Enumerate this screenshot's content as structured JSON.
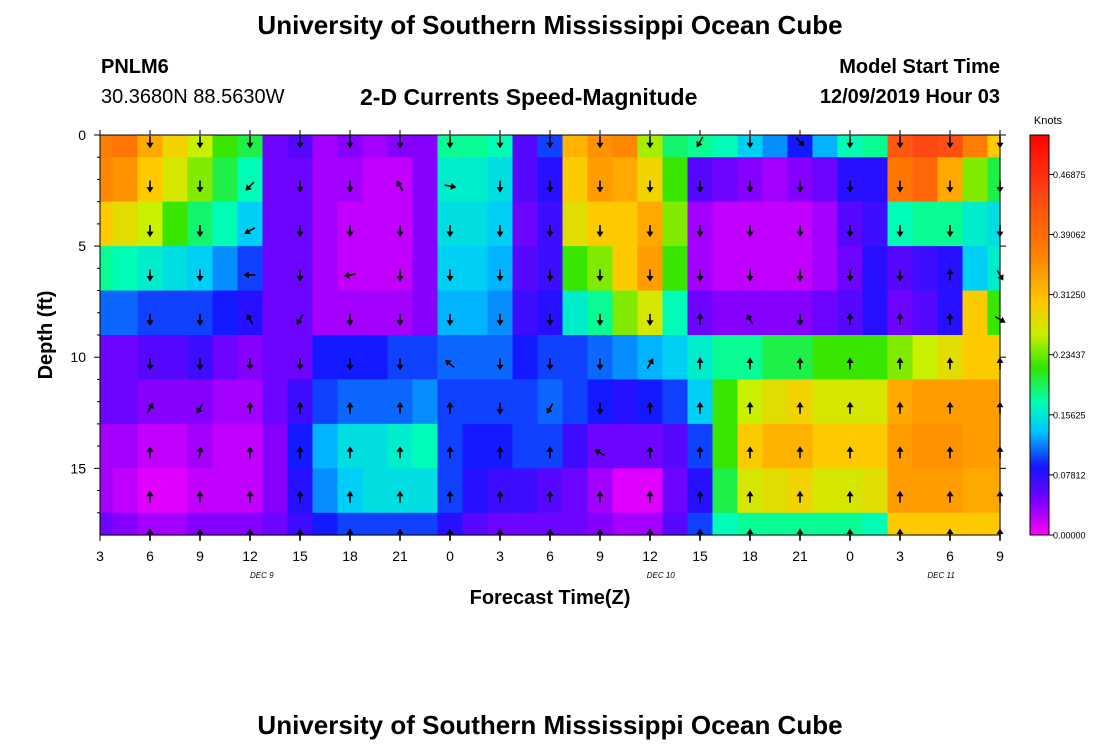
{
  "header": {
    "title": "University of Southern Mississippi Ocean Cube",
    "station": "PNLM6",
    "coords": "30.3680N 88.5630W",
    "subtitle": "2-D Currents Speed-Magnitude",
    "model_start_label": "Model Start Time",
    "model_start_value": "12/09/2019 Hour 03"
  },
  "footer": {
    "title": "University of Southern Mississippi Ocean Cube"
  },
  "chart_data": {
    "type": "heatmap",
    "title": "2-D Currents Speed-Magnitude",
    "xlabel": "Forecast Time(Z)",
    "ylabel": "Depth (ft)",
    "x_hours": [
      0,
      3,
      6,
      9,
      12,
      15,
      18,
      21,
      24,
      27,
      30,
      33,
      36,
      39,
      42,
      45,
      48,
      51,
      54
    ],
    "x_tick_labels": [
      "3",
      "6",
      "9",
      "12",
      "15",
      "18",
      "21",
      "0",
      "3",
      "6",
      "9",
      "12",
      "15",
      "18",
      "21",
      "0",
      "3",
      "6",
      "9"
    ],
    "date_labels": [
      {
        "hour": 15,
        "label": "DEC 9"
      },
      {
        "hour": 52,
        "label": "DEC 10"
      },
      {
        "hour": 78,
        "label": "DEC 11"
      }
    ],
    "xlim": [
      0,
      54
    ],
    "ylim": [
      0,
      18
    ],
    "y_ticks": [
      0,
      5,
      10,
      15
    ],
    "y_tick_labels": [
      "0",
      "5",
      "10",
      "15"
    ],
    "colorbar": {
      "unit": "Knots",
      "range": [
        0,
        0.52
      ],
      "ticks": [
        0.46875,
        0.39062,
        0.3125,
        0.23437,
        0.15625,
        0.07812,
        0.0
      ],
      "tick_labels": [
        "0.46875",
        "0.39062",
        "0.31250",
        "0.23437",
        "0.15625",
        "0.07812",
        "0.00000"
      ]
    },
    "grid": false,
    "speed_grid": {
      "time_hours": [
        0,
        1.5,
        3,
        4.5,
        6,
        7.5,
        9,
        10.5,
        12,
        13.5,
        15,
        16.5,
        18,
        19.5,
        21,
        22.5,
        24,
        25.5,
        27,
        28.5,
        30,
        31.5,
        33,
        34.5,
        36,
        37.5,
        39,
        40.5,
        42,
        43.5,
        45,
        46.5,
        48,
        49.5,
        51,
        52.5,
        54
      ],
      "depth_ft": [
        0,
        2,
        4,
        6,
        8,
        10,
        12,
        14,
        16,
        18
      ],
      "values": [
        [
          0.37,
          0.38,
          0.33,
          0.29,
          0.26,
          0.22,
          0.2,
          0.05,
          0.06,
          0.03,
          0.04,
          0.03,
          0.04,
          0.04,
          0.18,
          0.18,
          0.17,
          0.06,
          0.1,
          0.32,
          0.35,
          0.36,
          0.25,
          0.19,
          0.18,
          0.17,
          0.14,
          0.12,
          0.09,
          0.13,
          0.17,
          0.18,
          0.42,
          0.44,
          0.43,
          0.37,
          0.3
        ],
        [
          0.36,
          0.35,
          0.3,
          0.27,
          0.24,
          0.2,
          0.17,
          0.05,
          0.05,
          0.03,
          0.03,
          0.02,
          0.02,
          0.04,
          0.16,
          0.16,
          0.15,
          0.06,
          0.08,
          0.3,
          0.34,
          0.33,
          0.29,
          0.22,
          0.06,
          0.05,
          0.04,
          0.03,
          0.04,
          0.05,
          0.08,
          0.08,
          0.38,
          0.4,
          0.33,
          0.24,
          0.2
        ],
        [
          0.3,
          0.28,
          0.26,
          0.22,
          0.19,
          0.17,
          0.14,
          0.05,
          0.05,
          0.03,
          0.02,
          0.02,
          0.02,
          0.04,
          0.15,
          0.15,
          0.14,
          0.05,
          0.07,
          0.28,
          0.3,
          0.3,
          0.33,
          0.24,
          0.03,
          0.02,
          0.02,
          0.02,
          0.02,
          0.03,
          0.06,
          0.07,
          0.17,
          0.18,
          0.18,
          0.16,
          0.15
        ],
        [
          0.18,
          0.17,
          0.16,
          0.15,
          0.14,
          0.12,
          0.1,
          0.05,
          0.05,
          0.03,
          0.02,
          0.02,
          0.02,
          0.04,
          0.14,
          0.14,
          0.13,
          0.06,
          0.07,
          0.22,
          0.24,
          0.3,
          0.34,
          0.22,
          0.03,
          0.02,
          0.02,
          0.02,
          0.02,
          0.03,
          0.05,
          0.08,
          0.06,
          0.07,
          0.08,
          0.14,
          0.16
        ],
        [
          0.11,
          0.11,
          0.1,
          0.1,
          0.1,
          0.09,
          0.08,
          0.05,
          0.05,
          0.03,
          0.03,
          0.03,
          0.03,
          0.04,
          0.13,
          0.13,
          0.12,
          0.07,
          0.08,
          0.16,
          0.18,
          0.24,
          0.27,
          0.17,
          0.05,
          0.04,
          0.04,
          0.04,
          0.04,
          0.05,
          0.06,
          0.08,
          0.05,
          0.06,
          0.08,
          0.3,
          0.22
        ],
        [
          0.05,
          0.05,
          0.06,
          0.06,
          0.07,
          0.05,
          0.04,
          0.05,
          0.05,
          0.09,
          0.09,
          0.09,
          0.1,
          0.1,
          0.11,
          0.11,
          0.11,
          0.09,
          0.1,
          0.1,
          0.11,
          0.12,
          0.13,
          0.14,
          0.16,
          0.18,
          0.18,
          0.2,
          0.2,
          0.22,
          0.22,
          0.22,
          0.24,
          0.26,
          0.28,
          0.3,
          0.3
        ],
        [
          0.05,
          0.05,
          0.04,
          0.04,
          0.04,
          0.03,
          0.03,
          0.05,
          0.07,
          0.1,
          0.11,
          0.11,
          0.11,
          0.12,
          0.1,
          0.1,
          0.1,
          0.1,
          0.11,
          0.1,
          0.09,
          0.08,
          0.09,
          0.1,
          0.14,
          0.22,
          0.26,
          0.28,
          0.29,
          0.27,
          0.27,
          0.27,
          0.33,
          0.34,
          0.34,
          0.34,
          0.34
        ],
        [
          0.03,
          0.03,
          0.02,
          0.02,
          0.03,
          0.02,
          0.02,
          0.04,
          0.09,
          0.13,
          0.15,
          0.15,
          0.16,
          0.17,
          0.1,
          0.09,
          0.09,
          0.1,
          0.1,
          0.07,
          0.05,
          0.05,
          0.05,
          0.06,
          0.1,
          0.22,
          0.3,
          0.32,
          0.32,
          0.3,
          0.3,
          0.3,
          0.34,
          0.35,
          0.35,
          0.34,
          0.34
        ],
        [
          0.03,
          0.02,
          0.01,
          0.01,
          0.02,
          0.02,
          0.02,
          0.04,
          0.08,
          0.12,
          0.14,
          0.15,
          0.15,
          0.15,
          0.1,
          0.08,
          0.07,
          0.07,
          0.06,
          0.05,
          0.03,
          0.01,
          0.01,
          0.05,
          0.08,
          0.2,
          0.27,
          0.28,
          0.29,
          0.27,
          0.27,
          0.28,
          0.34,
          0.34,
          0.34,
          0.33,
          0.33
        ],
        [
          0.05,
          0.04,
          0.03,
          0.03,
          0.04,
          0.04,
          0.04,
          0.05,
          0.07,
          0.09,
          0.1,
          0.1,
          0.1,
          0.1,
          0.08,
          0.06,
          0.05,
          0.05,
          0.05,
          0.05,
          0.04,
          0.03,
          0.03,
          0.06,
          0.1,
          0.17,
          0.18,
          0.18,
          0.18,
          0.18,
          0.18,
          0.17,
          0.3,
          0.3,
          0.3,
          0.3,
          0.3
        ]
      ]
    },
    "direction_arrows": {
      "time_hours": [
        3,
        6,
        9,
        12,
        15,
        18,
        21,
        24,
        27,
        30,
        33,
        36,
        39,
        42,
        45,
        48,
        51,
        54
      ],
      "depth_ft": [
        0.3,
        2.3,
        4.3,
        6.3,
        8.3,
        10.3,
        12.3,
        14.3,
        16.3,
        18
      ],
      "directions_deg_cw_from_north": [
        [
          180,
          180,
          180,
          180,
          180,
          180,
          180,
          180,
          180,
          180,
          180,
          210,
          180,
          135,
          180,
          180,
          180,
          180
        ],
        [
          180,
          180,
          225,
          180,
          180,
          330,
          100,
          180,
          180,
          180,
          180,
          180,
          180,
          180,
          180,
          180,
          180,
          180
        ],
        [
          180,
          180,
          240,
          180,
          180,
          180,
          180,
          180,
          180,
          180,
          180,
          180,
          180,
          180,
          180,
          180,
          180,
          180
        ],
        [
          180,
          180,
          270,
          180,
          260,
          180,
          180,
          180,
          180,
          180,
          180,
          180,
          180,
          180,
          180,
          180,
          0,
          150
        ],
        [
          180,
          180,
          330,
          210,
          180,
          180,
          180,
          180,
          180,
          180,
          180,
          0,
          330,
          180,
          0,
          0,
          0,
          120
        ],
        [
          180,
          180,
          180,
          180,
          180,
          180,
          310,
          180,
          180,
          180,
          30,
          0,
          0,
          0,
          0,
          0,
          0,
          0
        ],
        [
          30,
          210,
          0,
          0,
          0,
          0,
          0,
          180,
          210,
          180,
          0,
          0,
          0,
          0,
          0,
          0,
          0,
          0
        ],
        [
          0,
          10,
          0,
          0,
          0,
          0,
          0,
          0,
          0,
          300,
          0,
          0,
          0,
          0,
          0,
          0,
          0,
          0
        ],
        [
          0,
          0,
          0,
          0,
          0,
          0,
          0,
          0,
          0,
          0,
          0,
          0,
          0,
          0,
          0,
          0,
          0,
          0
        ],
        [
          0,
          0,
          0,
          0,
          0,
          0,
          0,
          0,
          0,
          0,
          0,
          0,
          0,
          0,
          0,
          0,
          0,
          0
        ]
      ]
    }
  }
}
